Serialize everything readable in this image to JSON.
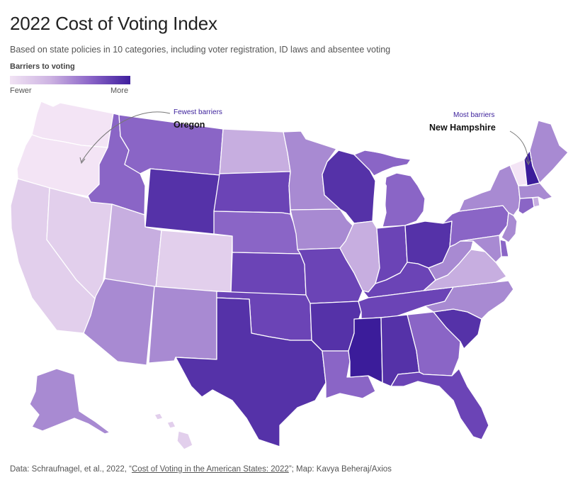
{
  "title": "2022 Cost of Voting Index",
  "subtitle": "Based on state policies in 10 categories, including voter registration, ID laws and absentee voting",
  "legend": {
    "title": "Barriers to voting",
    "low_label": "Fewer",
    "high_label": "More"
  },
  "annotations": {
    "fewest": {
      "label": "Fewest barriers",
      "state": "Oregon"
    },
    "most": {
      "label": "Most barriers",
      "state": "New Hampshire"
    }
  },
  "footer": {
    "prefix": "Data: Schraufnagel, et al., 2022, “",
    "link_text": "Cost of Voting in the American States: 2022",
    "suffix": "”; Map: Kavya Beheraj/Axios"
  },
  "colors": {
    "level_1": "#f3e4f5",
    "level_2": "#e2cfec",
    "level_3": "#c7aee0",
    "level_4": "#a88ad2",
    "level_5": "#8a65c6",
    "level_6": "#6b44b6",
    "level_7": "#5532a8",
    "level_8": "#3b1c9a"
  },
  "states": [
    {
      "name": "Washington",
      "level": 1
    },
    {
      "name": "Oregon",
      "level": 1
    },
    {
      "name": "California",
      "level": 2
    },
    {
      "name": "Nevada",
      "level": 2
    },
    {
      "name": "Idaho",
      "level": 5
    },
    {
      "name": "Montana",
      "level": 5
    },
    {
      "name": "Wyoming",
      "level": 7
    },
    {
      "name": "Utah",
      "level": 3
    },
    {
      "name": "Colorado",
      "level": 2
    },
    {
      "name": "Arizona",
      "level": 4
    },
    {
      "name": "New Mexico",
      "level": 4
    },
    {
      "name": "North Dakota",
      "level": 3
    },
    {
      "name": "South Dakota",
      "level": 6
    },
    {
      "name": "Nebraska",
      "level": 5
    },
    {
      "name": "Kansas",
      "level": 6
    },
    {
      "name": "Oklahoma",
      "level": 6
    },
    {
      "name": "Texas",
      "level": 7
    },
    {
      "name": "Minnesota",
      "level": 4
    },
    {
      "name": "Iowa",
      "level": 4
    },
    {
      "name": "Missouri",
      "level": 6
    },
    {
      "name": "Arkansas",
      "level": 7
    },
    {
      "name": "Louisiana",
      "level": 5
    },
    {
      "name": "Wisconsin",
      "level": 7
    },
    {
      "name": "Illinois",
      "level": 3
    },
    {
      "name": "Michigan",
      "level": 5
    },
    {
      "name": "Indiana",
      "level": 6
    },
    {
      "name": "Ohio",
      "level": 7
    },
    {
      "name": "Kentucky",
      "level": 6
    },
    {
      "name": "Tennessee",
      "level": 6
    },
    {
      "name": "Mississippi",
      "level": 8
    },
    {
      "name": "Alabama",
      "level": 7
    },
    {
      "name": "Georgia",
      "level": 5
    },
    {
      "name": "Florida",
      "level": 6
    },
    {
      "name": "South Carolina",
      "level": 7
    },
    {
      "name": "North Carolina",
      "level": 4
    },
    {
      "name": "Virginia",
      "level": 3
    },
    {
      "name": "West Virginia",
      "level": 4
    },
    {
      "name": "Pennsylvania",
      "level": 5
    },
    {
      "name": "New York",
      "level": 4
    },
    {
      "name": "Vermont",
      "level": 1
    },
    {
      "name": "New Hampshire",
      "level": 8
    },
    {
      "name": "Maine",
      "level": 4
    },
    {
      "name": "Massachusetts",
      "level": 4
    },
    {
      "name": "Connecticut",
      "level": 5
    },
    {
      "name": "Rhode Island",
      "level": 3
    },
    {
      "name": "New Jersey",
      "level": 4
    },
    {
      "name": "Delaware",
      "level": 5
    },
    {
      "name": "Maryland",
      "level": 4
    },
    {
      "name": "Alaska",
      "level": 4
    },
    {
      "name": "Hawaii",
      "level": 2
    }
  ]
}
